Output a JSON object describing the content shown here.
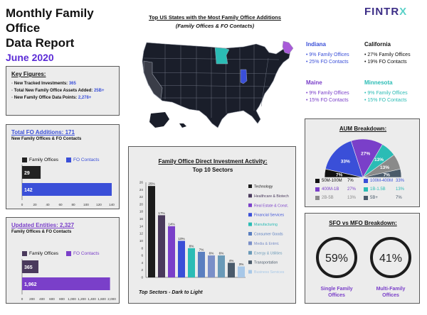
{
  "header": {
    "title_line1": "Monthly Family Office",
    "title_line2": "Data Report",
    "date": "June 2020",
    "logo_main": "FINTR",
    "logo_x": "X"
  },
  "map_section": {
    "title": "Top US States with the Most Family Office Additions",
    "subtitle": "(Family Offices & FO Contacts)",
    "states": [
      {
        "name": "Indiana",
        "fo": "9% Family Offices",
        "contacts": "25% FO Contacts",
        "color": "#3a4fd8"
      },
      {
        "name": "California",
        "fo": "27% Family Offices",
        "contacts": "19% FO Contacts",
        "color": "#111111"
      },
      {
        "name": "Maine",
        "fo": "9% Family Offices",
        "contacts": "15% FO Contacts",
        "color": "#7a3fc9"
      },
      {
        "name": "Minnesota",
        "fo": "9% Family Offices",
        "contacts": "15% FO Contacts",
        "color": "#2bbcb5"
      }
    ]
  },
  "key_figures": {
    "heading": "Key Figures:",
    "items": [
      {
        "label": "New Tracked Investments:",
        "value": "365"
      },
      {
        "label": "Total New Family Office Assets Added:",
        "value": "25B+"
      },
      {
        "label": "New Family Office Data Points:",
        "value": "2,278+"
      }
    ]
  },
  "fo_additions": {
    "heading": "Total FO Additions:",
    "heading_value": "171",
    "subtitle": "New Family Offices & FO Contacts",
    "legend": [
      {
        "name": "Family Offices",
        "color": "#222222"
      },
      {
        "name": "FO Contacts",
        "color": "#3a4fd8"
      }
    ]
  },
  "updated_entities": {
    "heading": "Updated Entities:",
    "heading_value": "2,327",
    "subtitle": "Family Offices & FO Contacts",
    "legend": [
      {
        "name": "Family Offices",
        "color": "#4a3a5c"
      },
      {
        "name": "FO Contacts",
        "color": "#7a3fc9"
      }
    ]
  },
  "investment_panel": {
    "title": "Family Office Direct Investment Activity:",
    "subtitle": "Top 10 Sectors",
    "footnote": "Top Sectors - Dark to Light"
  },
  "aum_panel": {
    "title": "AUM Breakdown:"
  },
  "sfo_panel": {
    "title": "SFO vs MFO Breakdown:",
    "single_label_1": "Single Family",
    "single_label_2": "Offices",
    "multi_label_1": "Multi-Family",
    "multi_label_2": "Offices"
  },
  "chart_data": [
    {
      "type": "bar",
      "orientation": "horizontal",
      "categories": [
        "Family Offices",
        "FO Contacts"
      ],
      "values": [
        29,
        142
      ],
      "xlim": [
        0,
        140
      ],
      "xticks": [
        0,
        20,
        40,
        60,
        80,
        100,
        120,
        140
      ],
      "colors": [
        "#222222",
        "#3a4fd8"
      ]
    },
    {
      "type": "bar",
      "orientation": "horizontal",
      "categories": [
        "Family Offices",
        "FO Contacts"
      ],
      "values": [
        365,
        1962
      ],
      "value_labels": [
        "365",
        "1,962"
      ],
      "xlim": [
        0,
        2000
      ],
      "xticks": [
        "0",
        "200",
        "400",
        "600",
        "800",
        "1,000",
        "1,200",
        "1,400",
        "1,600",
        "2,000"
      ],
      "colors": [
        "#4a3a5c",
        "#7a3fc9"
      ]
    },
    {
      "type": "bar",
      "title": "Family Office Direct Investment Activity:",
      "subtitle": "Top 10 Sectors",
      "categories": [
        "Technology",
        "Healthcare & Biotech",
        "Real Estate & Const.",
        "Financial Services",
        "Manufacturing",
        "Consumer Goods",
        "Media & Entmt.",
        "Energy & Utilities",
        "Transportation",
        "Business Services"
      ],
      "values": [
        25,
        17,
        14,
        10,
        8,
        7,
        6,
        6,
        4,
        3
      ],
      "value_labels": [
        "25%",
        "17%",
        "14%",
        "10%",
        "8%",
        "7%",
        "6%",
        "6%",
        "4%",
        "3%"
      ],
      "colors": [
        "#1c1c1c",
        "#4a3a5c",
        "#7a3fc9",
        "#3a4fd8",
        "#2bbcb5",
        "#5a7fc0",
        "#7a8fc8",
        "#6a9ab8",
        "#4a5a6a",
        "#a8c8e8"
      ],
      "ylim": [
        0,
        26
      ],
      "yticks": [
        0,
        2,
        4,
        6,
        8,
        10,
        12,
        14,
        16,
        18,
        20,
        22,
        24,
        26
      ]
    },
    {
      "type": "pie",
      "title": "AUM Breakdown:",
      "half": true,
      "labels": [
        "50M-100M",
        "100M-400M",
        "400M-1B",
        "1B-1.5B",
        "2B-5B",
        "5B+"
      ],
      "values": [
        7,
        33,
        27,
        13,
        13,
        7
      ],
      "value_labels": [
        "7%",
        "33%",
        "27%",
        "13%",
        "13%",
        "7%"
      ],
      "colors": [
        "#111111",
        "#3a4fd8",
        "#7a3fc9",
        "#2bbcb5",
        "#8a8a8a",
        "#4a5a6a"
      ]
    },
    {
      "type": "pie",
      "title": "SFO vs MFO Breakdown:",
      "donut": true,
      "labels": [
        "Single Family Offices",
        "Multi-Family Offices"
      ],
      "values": [
        59,
        41
      ],
      "value_labels": [
        "59%",
        "41%"
      ],
      "colors": [
        "#1c1c1c",
        "#1c1c1c"
      ]
    }
  ]
}
